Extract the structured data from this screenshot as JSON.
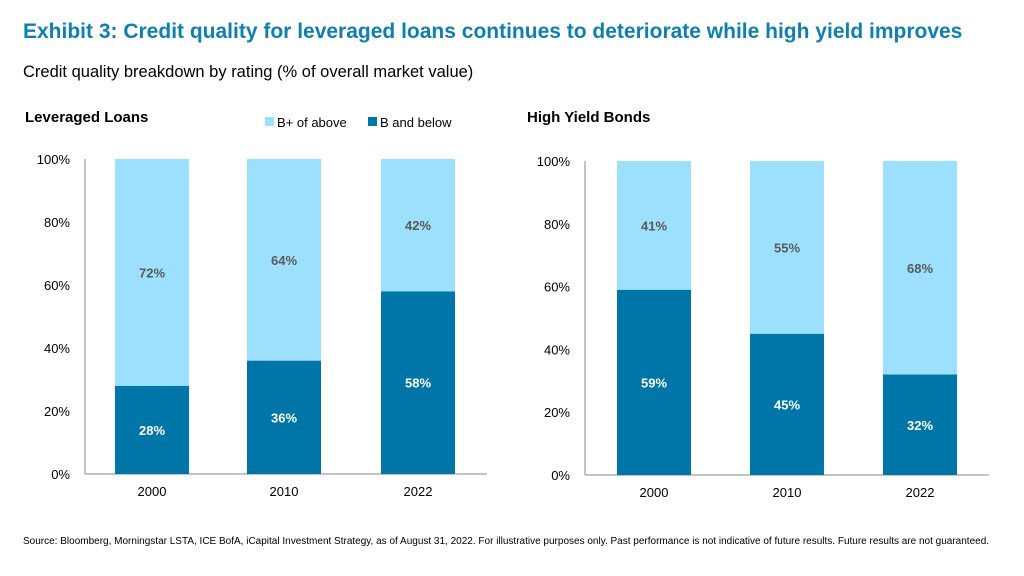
{
  "title": "Exhibit 3: Credit quality for leveraged loans continues to deteriorate while high yield improves",
  "subtitle": "Credit quality breakdown by rating (% of overall market value)",
  "source": "Source: Bloomberg, Morningstar LSTA, ICE BofA, iCapital Investment Strategy, as of August 31, 2022. For illustrative purposes only. Past performance is not indicative of future results. Future results are not guaranteed.",
  "colors": {
    "title": "#0f7fb0",
    "upper": "#9de0fd",
    "lower": "#0075a8",
    "label": "#595959"
  },
  "legend": [
    "B+ of above",
    "B and below"
  ],
  "chart_data": [
    {
      "type": "bar",
      "stacked": true,
      "title": "Leveraged Loans",
      "categories": [
        "2000",
        "2010",
        "2022"
      ],
      "series": [
        {
          "name": "B and below",
          "values": [
            28,
            36,
            58
          ]
        },
        {
          "name": "B+ of above",
          "values": [
            72,
            64,
            42
          ]
        }
      ],
      "ylim": [
        0,
        100
      ],
      "yticks": [
        "0%",
        "20%",
        "40%",
        "60%",
        "80%",
        "100%"
      ],
      "legend_position": "top-right",
      "grid": false
    },
    {
      "type": "bar",
      "stacked": true,
      "title": "High Yield Bonds",
      "categories": [
        "2000",
        "2010",
        "2022"
      ],
      "series": [
        {
          "name": "B and below",
          "values": [
            59,
            45,
            32
          ]
        },
        {
          "name": "B+ of above",
          "values": [
            41,
            55,
            68
          ]
        }
      ],
      "ylim": [
        0,
        100
      ],
      "yticks": [
        "0%",
        "20%",
        "40%",
        "60%",
        "80%",
        "100%"
      ],
      "grid": false
    }
  ]
}
